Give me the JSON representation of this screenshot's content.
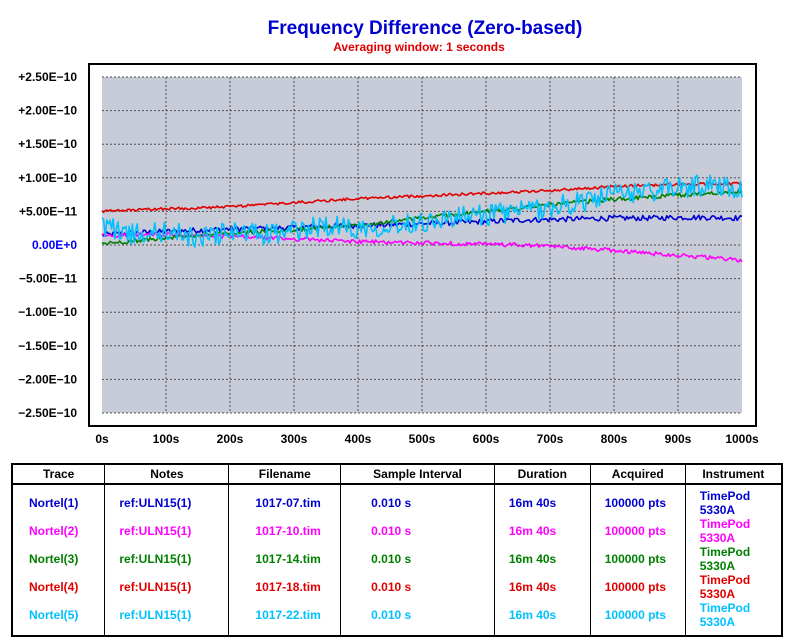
{
  "chart_data": {
    "type": "line",
    "title": "Frequency Difference (Zero-based)",
    "subtitle": "Averaging window: 1 seconds",
    "xlabel": "",
    "ylabel": "",
    "xlim": [
      0,
      1000
    ],
    "ylim": [
      -2.5e-10,
      2.5e-10
    ],
    "grid": true,
    "x_ticks": [
      0,
      100,
      200,
      300,
      400,
      500,
      600,
      700,
      800,
      900,
      1000
    ],
    "x_tick_labels": [
      "0s",
      "100s",
      "200s",
      "300s",
      "400s",
      "500s",
      "600s",
      "700s",
      "800s",
      "900s",
      "1000s"
    ],
    "y_ticks": [
      2.5e-10,
      2e-10,
      1.5e-10,
      1e-10,
      5e-11,
      0,
      -5e-11,
      -1e-10,
      -1.5e-10,
      -2e-10,
      -2.5e-10
    ],
    "y_tick_labels": [
      "+2.50E−10",
      "+2.00E−10",
      "+1.50E−10",
      "+1.00E−10",
      "+5.00E−11",
      "0.00E+0",
      "−5.00E−11",
      "−1.00E−10",
      "−1.50E−10",
      "−2.00E−10",
      "−2.50E−10"
    ],
    "x": [
      0,
      50,
      100,
      150,
      200,
      250,
      300,
      350,
      400,
      450,
      500,
      550,
      600,
      650,
      700,
      750,
      800,
      850,
      900,
      950,
      1000
    ],
    "series": [
      {
        "name": "Nortel(1)",
        "color": "#0000d0",
        "noise": 4e-12,
        "values": [
          1.5e-11,
          1.8e-11,
          2e-11,
          2.2e-11,
          2.4e-11,
          2.5e-11,
          2.6e-11,
          2.8e-11,
          2.9e-11,
          3e-11,
          3.2e-11,
          3.3e-11,
          3.5e-11,
          3.7e-11,
          3.8e-11,
          3.9e-11,
          4e-11,
          4e-11,
          4.1e-11,
          4.1e-11,
          4e-11
        ]
      },
      {
        "name": "Nortel(2)",
        "color": "#ff00ff",
        "noise": 3e-12,
        "values": [
          1.4e-11,
          1.5e-11,
          1.5e-11,
          1.4e-11,
          1.3e-11,
          1.1e-11,
          9e-12,
          7e-12,
          5e-12,
          4e-12,
          3e-12,
          2e-12,
          1e-12,
          0,
          -2e-12,
          -5e-12,
          -8e-12,
          -1.2e-11,
          -1.5e-11,
          -1.9e-11,
          -2.3e-11
        ]
      },
      {
        "name": "Nortel(3)",
        "color": "#008000",
        "noise": 3e-12,
        "values": [
          2e-12,
          6e-12,
          1e-11,
          1.5e-11,
          1.8e-11,
          2e-11,
          2.2e-11,
          2.6e-11,
          3e-11,
          3.5e-11,
          4e-11,
          4.5e-11,
          5e-11,
          5.5e-11,
          6e-11,
          6.4e-11,
          6.8e-11,
          7.1e-11,
          7.4e-11,
          7.7e-11,
          8e-11
        ]
      },
      {
        "name": "Nortel(4)",
        "color": "#e00000",
        "noise": 2e-12,
        "values": [
          5e-11,
          5.2e-11,
          5.4e-11,
          5.5e-11,
          5.7e-11,
          6e-11,
          6.3e-11,
          6.6e-11,
          6.9e-11,
          7.1e-11,
          7.3e-11,
          7.5e-11,
          7.7e-11,
          7.9e-11,
          8.1e-11,
          8.4e-11,
          8.7e-11,
          8.9e-11,
          9e-11,
          9.1e-11,
          9.1e-11
        ]
      },
      {
        "name": "Nortel(5)",
        "color": "#00c0ff",
        "noise": 1.6e-11,
        "values": [
          3e-11,
          1.5e-11,
          2e-11,
          1e-11,
          2e-11,
          1.5e-11,
          2e-11,
          3e-11,
          2.5e-11,
          3e-11,
          3.5e-11,
          4e-11,
          4.5e-11,
          5e-11,
          5.5e-11,
          6.5e-11,
          7.5e-11,
          8e-11,
          8.5e-11,
          9e-11,
          8.5e-11
        ]
      }
    ]
  },
  "legend_table": {
    "headers": [
      "Trace",
      "Notes",
      "Filename",
      "Sample Interval",
      "Duration",
      "Acquired",
      "Instrument"
    ],
    "rows": [
      {
        "color": "#0000d0",
        "cells": [
          "Nortel(1)",
          "ref:ULN15(1)",
          "1017-07.tim",
          "0.010 s",
          "16m 40s",
          "100000 pts",
          "TimePod 5330A"
        ]
      },
      {
        "color": "#ff00ff",
        "cells": [
          "Nortel(2)",
          "ref:ULN15(1)",
          "1017-10.tim",
          "0.010 s",
          "16m 40s",
          "100000 pts",
          "TimePod 5330A"
        ]
      },
      {
        "color": "#008000",
        "cells": [
          "Nortel(3)",
          "ref:ULN15(1)",
          "1017-14.tim",
          "0.010 s",
          "16m 40s",
          "100000 pts",
          "TimePod 5330A"
        ]
      },
      {
        "color": "#e00000",
        "cells": [
          "Nortel(4)",
          "ref:ULN15(1)",
          "1017-18.tim",
          "0.010 s",
          "16m 40s",
          "100000 pts",
          "TimePod 5330A"
        ]
      },
      {
        "color": "#00c0ff",
        "cells": [
          "Nortel(5)",
          "ref:ULN15(1)",
          "1017-22.tim",
          "0.010 s",
          "16m 40s",
          "100000 pts",
          "TimePod 5330A"
        ]
      }
    ]
  },
  "colors": {
    "plot_background": "#c8ccd8",
    "title": "#0000d0",
    "subtitle": "#e00000",
    "zero_label": "#0000ff"
  }
}
